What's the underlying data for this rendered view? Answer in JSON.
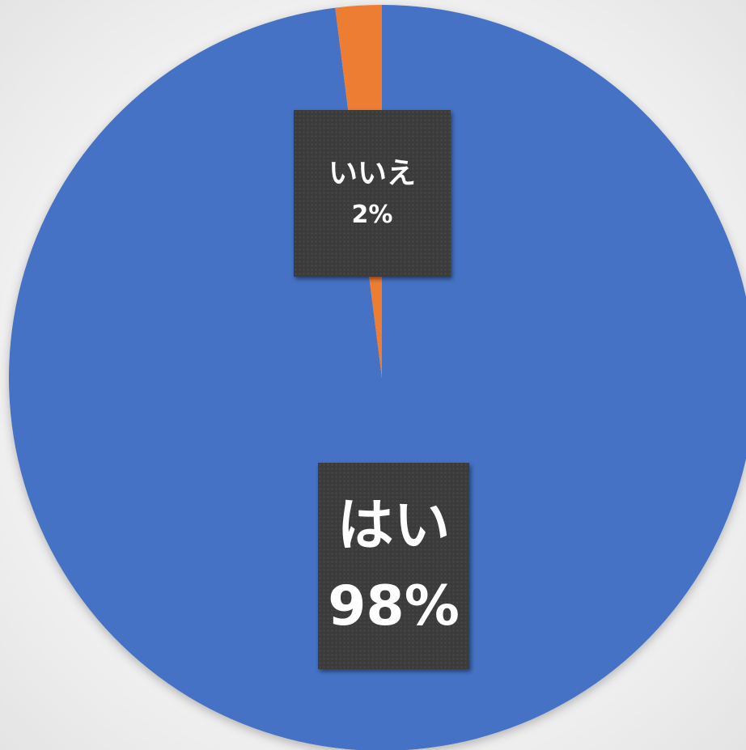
{
  "chart_data": {
    "type": "pie",
    "categories": [
      "はい",
      "いいえ"
    ],
    "values": [
      98,
      2
    ],
    "value_labels": [
      "98%",
      "2%"
    ],
    "colors": [
      "#4472C4",
      "#ED7D31"
    ],
    "title": "",
    "legend": "none"
  }
}
